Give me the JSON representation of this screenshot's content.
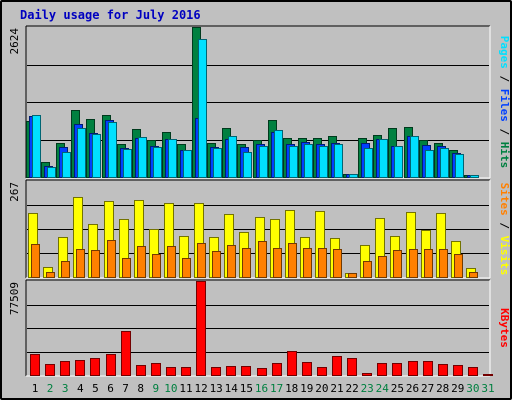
{
  "title": "Daily usage for July 2016",
  "colors": {
    "hits": "#008040",
    "files": "#0040ff",
    "pages": "#00e0ff",
    "visits": "#ffff00",
    "sites": "#ff8000",
    "kbytes": "#ff0000",
    "weekday": "#000000",
    "weekend": "#008040",
    "slash": "#000000"
  },
  "chart_data": [
    {
      "type": "bar",
      "panel": "hits_files_pages",
      "ymax_label": "2624",
      "ylim": [
        0,
        2624
      ],
      "right_label": [
        {
          "text": "Pages",
          "color_key": "pages"
        },
        {
          "text": " / ",
          "color_key": "slash"
        },
        {
          "text": "Files",
          "color_key": "files"
        },
        {
          "text": " / ",
          "color_key": "slash"
        },
        {
          "text": "Hits",
          "color_key": "hits"
        }
      ],
      "categories": [
        "1",
        "2",
        "3",
        "4",
        "5",
        "6",
        "7",
        "8",
        "9",
        "10",
        "11",
        "12",
        "13",
        "14",
        "15",
        "16",
        "17",
        "18",
        "19",
        "20",
        "21",
        "22",
        "23",
        "24",
        "25",
        "26",
        "27",
        "28",
        "29",
        "30",
        "31"
      ],
      "series": [
        {
          "name": "Hits",
          "color_key": "hits",
          "values": [
            980,
            270,
            600,
            1180,
            1010,
            1080,
            580,
            840,
            650,
            780,
            570,
            2624,
            600,
            850,
            580,
            650,
            990,
            690,
            680,
            690,
            720,
            60,
            680,
            730,
            860,
            870,
            650,
            600,
            480,
            40,
            0
          ]
        },
        {
          "name": "Files",
          "color_key": "files",
          "values": [
            1060,
            190,
            530,
            920,
            770,
            990,
            500,
            680,
            550,
            670,
            480,
            1030,
            520,
            660,
            530,
            570,
            790,
            570,
            610,
            580,
            590,
            50,
            590,
            670,
            540,
            720,
            560,
            540,
            420,
            40,
            0
          ]
        },
        {
          "name": "Pages",
          "color_key": "pages",
          "values": [
            1080,
            180,
            430,
            850,
            760,
            970,
            490,
            700,
            530,
            670,
            470,
            2420,
            500,
            720,
            440,
            540,
            820,
            540,
            580,
            550,
            580,
            60,
            510,
            660,
            540,
            710,
            470,
            510,
            400,
            40,
            0
          ]
        }
      ]
    },
    {
      "type": "bar",
      "panel": "sites_visits",
      "ymax_label": "267",
      "ylim": [
        0,
        267
      ],
      "right_label": [
        {
          "text": "Sites",
          "color_key": "sites"
        },
        {
          "text": " / ",
          "color_key": "slash"
        },
        {
          "text": "Visits",
          "color_key": "visits"
        }
      ],
      "categories": [
        "1",
        "2",
        "3",
        "4",
        "5",
        "6",
        "7",
        "8",
        "9",
        "10",
        "11",
        "12",
        "13",
        "14",
        "15",
        "16",
        "17",
        "18",
        "19",
        "20",
        "21",
        "22",
        "23",
        "24",
        "25",
        "26",
        "27",
        "28",
        "29",
        "30",
        "31"
      ],
      "series": [
        {
          "name": "Visits",
          "color_key": "visits",
          "values": [
            177,
            27,
            112,
            223,
            147,
            210,
            160,
            215,
            133,
            206,
            114,
            207,
            112,
            176,
            125,
            168,
            160,
            187,
            110,
            184,
            108,
            12,
            90,
            163,
            113,
            180,
            130,
            177,
            101,
            26,
            0
          ]
        },
        {
          "name": "Sites",
          "color_key": "sites",
          "values": [
            93,
            13,
            45,
            78,
            74,
            103,
            52,
            86,
            64,
            86,
            52,
            95,
            71,
            90,
            80,
            99,
            81,
            95,
            80,
            80,
            78,
            10,
            44,
            58,
            75,
            79,
            79,
            79,
            63,
            14,
            0
          ]
        }
      ]
    },
    {
      "type": "bar",
      "panel": "kbytes",
      "ymax_label": "77509",
      "ylim": [
        0,
        77509
      ],
      "right_label": [
        {
          "text": "KBytes",
          "color_key": "kbytes"
        }
      ],
      "categories": [
        "1",
        "2",
        "3",
        "4",
        "5",
        "6",
        "7",
        "8",
        "9",
        "10",
        "11",
        "12",
        "13",
        "14",
        "15",
        "16",
        "17",
        "18",
        "19",
        "20",
        "21",
        "22",
        "23",
        "24",
        "25",
        "26",
        "27",
        "28",
        "29",
        "30",
        "31"
      ],
      "series": [
        {
          "name": "KBytes",
          "color_key": "kbytes",
          "values": [
            17000,
            9000,
            11500,
            12300,
            14000,
            17000,
            36000,
            8000,
            9500,
            7000,
            7000,
            77509,
            7000,
            7500,
            7500,
            5600,
            9500,
            20000,
            10500,
            7000,
            15500,
            14000,
            1500,
            10000,
            10000,
            11500,
            11500,
            9000,
            8500,
            6500,
            500
          ]
        }
      ]
    }
  ],
  "day_labels": [
    {
      "d": "1",
      "weekend": false
    },
    {
      "d": "2",
      "weekend": true
    },
    {
      "d": "3",
      "weekend": true
    },
    {
      "d": "4",
      "weekend": false
    },
    {
      "d": "5",
      "weekend": false
    },
    {
      "d": "6",
      "weekend": false
    },
    {
      "d": "7",
      "weekend": false
    },
    {
      "d": "8",
      "weekend": false
    },
    {
      "d": "9",
      "weekend": true
    },
    {
      "d": "10",
      "weekend": true
    },
    {
      "d": "11",
      "weekend": false
    },
    {
      "d": "12",
      "weekend": false
    },
    {
      "d": "13",
      "weekend": false
    },
    {
      "d": "14",
      "weekend": false
    },
    {
      "d": "15",
      "weekend": false
    },
    {
      "d": "16",
      "weekend": true
    },
    {
      "d": "17",
      "weekend": true
    },
    {
      "d": "18",
      "weekend": false
    },
    {
      "d": "19",
      "weekend": false
    },
    {
      "d": "20",
      "weekend": false
    },
    {
      "d": "21",
      "weekend": false
    },
    {
      "d": "22",
      "weekend": false
    },
    {
      "d": "23",
      "weekend": true
    },
    {
      "d": "24",
      "weekend": true
    },
    {
      "d": "25",
      "weekend": false
    },
    {
      "d": "26",
      "weekend": false
    },
    {
      "d": "27",
      "weekend": false
    },
    {
      "d": "28",
      "weekend": false
    },
    {
      "d": "29",
      "weekend": false
    },
    {
      "d": "30",
      "weekend": true
    },
    {
      "d": "31",
      "weekend": true
    }
  ]
}
